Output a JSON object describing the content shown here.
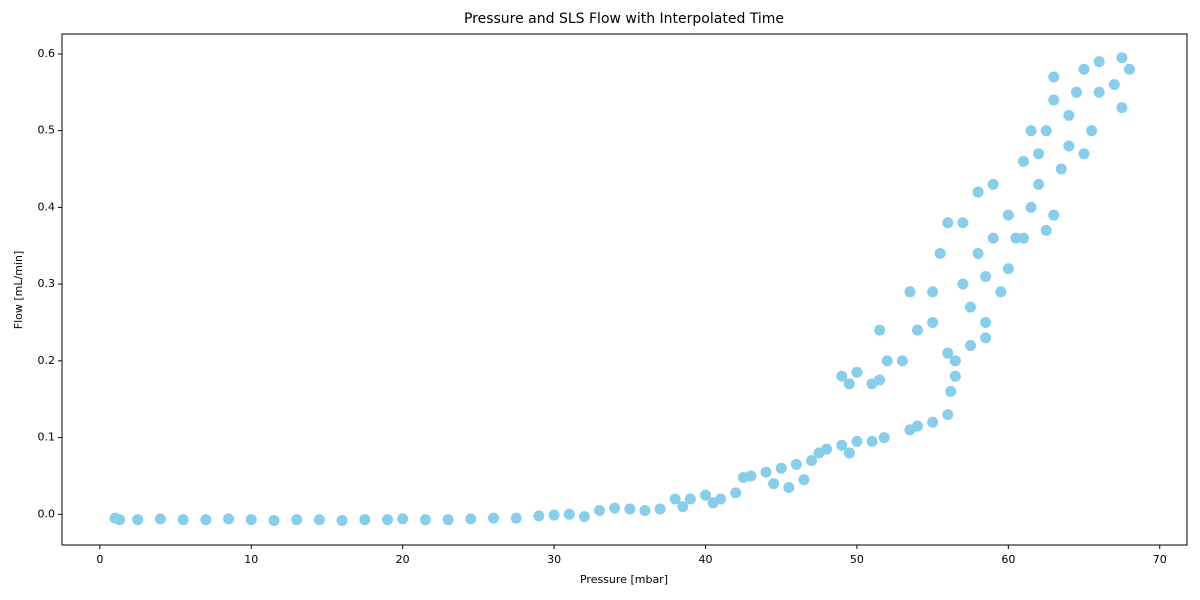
{
  "chart_data": {
    "type": "scatter",
    "title": "Pressure and SLS Flow with Interpolated Time",
    "xlabel": "Pressure [mbar]",
    "ylabel": "Flow [mL/min]",
    "color": "#87ceeb",
    "grid": false,
    "xlim": [
      -2.5,
      71.8
    ],
    "ylim": [
      -0.04,
      0.626
    ],
    "xticks": [
      0,
      10,
      20,
      30,
      40,
      50,
      60,
      70
    ],
    "yticks": [
      {
        "value": 0,
        "label": "0.0"
      },
      0.1,
      0.2,
      0.3,
      0.4,
      0.5,
      0.6
    ],
    "x": [
      1,
      1.3,
      2.5,
      4,
      5.5,
      7,
      8.5,
      10,
      11.5,
      13,
      14.5,
      16,
      17.5,
      19,
      20,
      21.5,
      23,
      24.5,
      26,
      27.5,
      29,
      30,
      31,
      32,
      33,
      34,
      35,
      36,
      37,
      38,
      38.5,
      39,
      40,
      40.5,
      41,
      42,
      42.5,
      43,
      44,
      44.5,
      45,
      45.5,
      46,
      46.5,
      47,
      47.5,
      48,
      49,
      49.5,
      50,
      51,
      51.8,
      49,
      49.5,
      50,
      51,
      51.5,
      51.5,
      52,
      53,
      53.5,
      54,
      53.5,
      54,
      55,
      55,
      55,
      56,
      56,
      56,
      56.2,
      56.5,
      56.5,
      55.5,
      57,
      57,
      57.5,
      57.5,
      58,
      58,
      58.5,
      58.5,
      58.5,
      59,
      59,
      59.5,
      60,
      60,
      60.5,
      61,
      61,
      61.5,
      61.5,
      62,
      62,
      62.5,
      62.5,
      63,
      63,
      63,
      63.5,
      64,
      64,
      64.5,
      65,
      65,
      65.5,
      66,
      66,
      67,
      67.5,
      67.5,
      68
    ],
    "values": [
      -0.005,
      -0.007,
      -0.007,
      -0.006,
      -0.007,
      -0.007,
      -0.006,
      -0.007,
      -0.008,
      -0.007,
      -0.007,
      -0.008,
      -0.007,
      -0.007,
      -0.006,
      -0.007,
      -0.007,
      -0.006,
      -0.005,
      -0.005,
      -0.002,
      -0.001,
      0,
      -0.003,
      0.005,
      0.008,
      0.007,
      0.005,
      0.007,
      0.02,
      0.01,
      0.02,
      0.025,
      0.015,
      0.02,
      0.028,
      0.048,
      0.05,
      0.055,
      0.04,
      0.06,
      0.035,
      0.065,
      0.045,
      0.07,
      0.08,
      0.085,
      0.09,
      0.08,
      0.095,
      0.095,
      0.1,
      0.18,
      0.17,
      0.185,
      0.17,
      0.175,
      0.24,
      0.2,
      0.2,
      0.11,
      0.115,
      0.29,
      0.24,
      0.29,
      0.25,
      0.12,
      0.13,
      0.21,
      0.38,
      0.16,
      0.2,
      0.18,
      0.34,
      0.3,
      0.38,
      0.27,
      0.22,
      0.34,
      0.42,
      0.25,
      0.23,
      0.31,
      0.36,
      0.43,
      0.29,
      0.32,
      0.39,
      0.36,
      0.36,
      0.46,
      0.5,
      0.4,
      0.43,
      0.47,
      0.5,
      0.37,
      0.39,
      0.54,
      0.57,
      0.45,
      0.52,
      0.48,
      0.55,
      0.58,
      0.47,
      0.5,
      0.55,
      0.59,
      0.56,
      0.53,
      0.595,
      0.58
    ]
  }
}
